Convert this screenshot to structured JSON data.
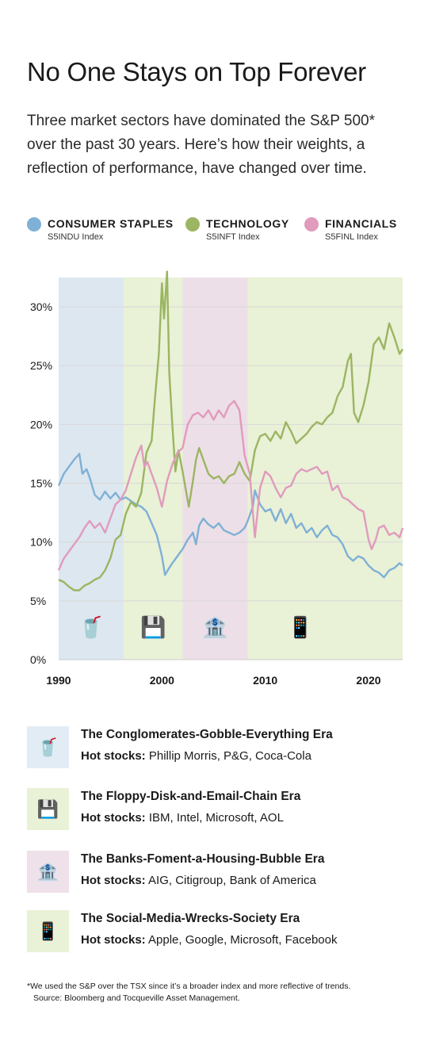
{
  "header": {
    "title": "No One Stays on Top Forever",
    "subtitle": "Three market sectors have dominated the S&P 500* over the past 30 years. Here’s how their weights, a reflection of performance, have changed over time."
  },
  "legend": [
    {
      "name": "CONSUMER STAPLES",
      "index": "S5INDU Index",
      "color": "#7fb0d6"
    },
    {
      "name": "TECHNOLOGY",
      "index": "S5INFT Index",
      "color": "#9bb562"
    },
    {
      "name": "FINANCIALS",
      "index": "S5FINL Index",
      "color": "#e09bbd"
    }
  ],
  "chart_data": {
    "type": "line",
    "title": "",
    "xlabel": "",
    "ylabel": "",
    "xlim": [
      1990,
      2023.3
    ],
    "ylim": [
      0,
      30
    ],
    "x_ticks": [
      {
        "value": 1990,
        "label": "1990"
      },
      {
        "value": 2000,
        "label": "2000"
      },
      {
        "value": 2010,
        "label": "2010"
      },
      {
        "value": 2020,
        "label": "2020"
      }
    ],
    "y_ticks": [
      {
        "value": 0,
        "label": "0%"
      },
      {
        "value": 5,
        "label": "5%"
      },
      {
        "value": 10,
        "label": "10%"
      },
      {
        "value": 15,
        "label": "15%"
      },
      {
        "value": 20,
        "label": "20%"
      },
      {
        "value": 25,
        "label": "25%"
      },
      {
        "value": 30,
        "label": "30%"
      }
    ],
    "grid": true,
    "legend_position": "top",
    "era_bands": [
      {
        "start": 1990,
        "end": 1996.3,
        "sector": "CONSUMER STAPLES",
        "icon": "soda-cup-icon",
        "glyph": "🥤"
      },
      {
        "start": 1996.3,
        "end": 2002,
        "sector": "TECHNOLOGY",
        "icon": "floppy-disk-icon",
        "glyph": "💾"
      },
      {
        "start": 2002,
        "end": 2008.3,
        "sector": "FINANCIALS",
        "icon": "bank-icon",
        "glyph": "🏦"
      },
      {
        "start": 2008.3,
        "end": 2023.3,
        "sector": "TECHNOLOGY",
        "icon": "mobile-phone-icon",
        "glyph": "📱"
      }
    ],
    "series": [
      {
        "name": "CONSUMER STAPLES",
        "color": "#7fb0d6",
        "points": [
          [
            1990,
            14.8
          ],
          [
            1990.5,
            15.8
          ],
          [
            1991,
            16.4
          ],
          [
            1991.5,
            17.0
          ],
          [
            1992,
            17.5
          ],
          [
            1992.3,
            15.8
          ],
          [
            1992.7,
            16.2
          ],
          [
            1993,
            15.5
          ],
          [
            1993.5,
            14.0
          ],
          [
            1994,
            13.6
          ],
          [
            1994.5,
            14.3
          ],
          [
            1995,
            13.7
          ],
          [
            1995.5,
            14.2
          ],
          [
            1996,
            13.6
          ],
          [
            1996.5,
            13.8
          ],
          [
            1997,
            13.5
          ],
          [
            1997.5,
            13.2
          ],
          [
            1998,
            13.0
          ],
          [
            1998.5,
            12.6
          ],
          [
            1999,
            11.6
          ],
          [
            1999.5,
            10.6
          ],
          [
            2000,
            8.8
          ],
          [
            2000.3,
            7.2
          ],
          [
            2000.7,
            7.8
          ],
          [
            2001,
            8.2
          ],
          [
            2001.5,
            8.8
          ],
          [
            2002,
            9.4
          ],
          [
            2002.5,
            10.2
          ],
          [
            2003,
            10.8
          ],
          [
            2003.3,
            9.8
          ],
          [
            2003.6,
            11.4
          ],
          [
            2004,
            12.0
          ],
          [
            2004.5,
            11.5
          ],
          [
            2005,
            11.2
          ],
          [
            2005.5,
            11.6
          ],
          [
            2006,
            11.0
          ],
          [
            2006.5,
            10.8
          ],
          [
            2007,
            10.6
          ],
          [
            2007.5,
            10.8
          ],
          [
            2008,
            11.2
          ],
          [
            2008.3,
            11.8
          ],
          [
            2008.8,
            13.0
          ],
          [
            2009,
            14.4
          ],
          [
            2009.5,
            13.2
          ],
          [
            2010,
            12.6
          ],
          [
            2010.5,
            12.8
          ],
          [
            2011,
            11.8
          ],
          [
            2011.5,
            12.8
          ],
          [
            2012,
            11.6
          ],
          [
            2012.5,
            12.4
          ],
          [
            2013,
            11.2
          ],
          [
            2013.5,
            11.6
          ],
          [
            2014,
            10.8
          ],
          [
            2014.5,
            11.2
          ],
          [
            2015,
            10.4
          ],
          [
            2015.5,
            11.0
          ],
          [
            2016,
            11.4
          ],
          [
            2016.5,
            10.6
          ],
          [
            2017,
            10.4
          ],
          [
            2017.5,
            9.8
          ],
          [
            2018,
            8.8
          ],
          [
            2018.5,
            8.4
          ],
          [
            2019,
            8.8
          ],
          [
            2019.5,
            8.6
          ],
          [
            2020,
            8.0
          ],
          [
            2020.5,
            7.6
          ],
          [
            2021,
            7.4
          ],
          [
            2021.5,
            7.0
          ],
          [
            2022,
            7.6
          ],
          [
            2022.5,
            7.8
          ],
          [
            2023,
            8.2
          ],
          [
            2023.3,
            8.0
          ]
        ]
      },
      {
        "name": "TECHNOLOGY",
        "color": "#9bb562",
        "points": [
          [
            1990,
            6.8
          ],
          [
            1990.5,
            6.6
          ],
          [
            1991,
            6.2
          ],
          [
            1991.5,
            5.9
          ],
          [
            1992,
            5.9
          ],
          [
            1992.5,
            6.3
          ],
          [
            1993,
            6.5
          ],
          [
            1993.5,
            6.8
          ],
          [
            1994,
            7.0
          ],
          [
            1994.5,
            7.6
          ],
          [
            1995,
            8.6
          ],
          [
            1995.5,
            10.2
          ],
          [
            1996,
            10.6
          ],
          [
            1996.5,
            12.4
          ],
          [
            1997,
            13.4
          ],
          [
            1997.5,
            13.0
          ],
          [
            1998,
            14.2
          ],
          [
            1998.5,
            17.6
          ],
          [
            1999,
            18.6
          ],
          [
            1999.3,
            22.0
          ],
          [
            1999.7,
            26.0
          ],
          [
            2000,
            32.0
          ],
          [
            2000.2,
            29.0
          ],
          [
            2000.5,
            33.0
          ],
          [
            2000.7,
            24.5
          ],
          [
            2001,
            20.0
          ],
          [
            2001.3,
            16.0
          ],
          [
            2001.6,
            17.8
          ],
          [
            2002,
            16.0
          ],
          [
            2002.3,
            14.5
          ],
          [
            2002.6,
            13.0
          ],
          [
            2003,
            15.2
          ],
          [
            2003.3,
            17.0
          ],
          [
            2003.6,
            18.0
          ],
          [
            2004,
            17.0
          ],
          [
            2004.5,
            15.8
          ],
          [
            2005,
            15.4
          ],
          [
            2005.5,
            15.6
          ],
          [
            2006,
            15.0
          ],
          [
            2006.5,
            15.6
          ],
          [
            2007,
            15.8
          ],
          [
            2007.5,
            16.8
          ],
          [
            2008,
            15.8
          ],
          [
            2008.5,
            15.2
          ],
          [
            2009,
            17.8
          ],
          [
            2009.5,
            19.0
          ],
          [
            2010,
            19.2
          ],
          [
            2010.5,
            18.6
          ],
          [
            2011,
            19.4
          ],
          [
            2011.5,
            18.8
          ],
          [
            2012,
            20.2
          ],
          [
            2012.5,
            19.4
          ],
          [
            2013,
            18.4
          ],
          [
            2013.5,
            18.8
          ],
          [
            2014,
            19.2
          ],
          [
            2014.5,
            19.8
          ],
          [
            2015,
            20.2
          ],
          [
            2015.5,
            20.0
          ],
          [
            2016,
            20.6
          ],
          [
            2016.5,
            21.0
          ],
          [
            2017,
            22.4
          ],
          [
            2017.5,
            23.2
          ],
          [
            2018,
            25.4
          ],
          [
            2018.3,
            26.0
          ],
          [
            2018.6,
            21.0
          ],
          [
            2019,
            20.2
          ],
          [
            2019.5,
            21.6
          ],
          [
            2020,
            23.6
          ],
          [
            2020.5,
            26.8
          ],
          [
            2021,
            27.4
          ],
          [
            2021.5,
            26.4
          ],
          [
            2022,
            28.6
          ],
          [
            2022.5,
            27.4
          ],
          [
            2023,
            26.0
          ],
          [
            2023.3,
            26.4
          ]
        ]
      },
      {
        "name": "FINANCIALS",
        "color": "#e09bbd",
        "points": [
          [
            1990,
            7.6
          ],
          [
            1990.5,
            8.6
          ],
          [
            1991,
            9.2
          ],
          [
            1991.5,
            9.8
          ],
          [
            1992,
            10.4
          ],
          [
            1992.5,
            11.2
          ],
          [
            1993,
            11.8
          ],
          [
            1993.5,
            11.2
          ],
          [
            1994,
            11.6
          ],
          [
            1994.5,
            10.8
          ],
          [
            1995,
            12.0
          ],
          [
            1995.5,
            13.2
          ],
          [
            1996,
            13.6
          ],
          [
            1996.5,
            14.4
          ],
          [
            1997,
            15.8
          ],
          [
            1997.5,
            17.2
          ],
          [
            1998,
            18.2
          ],
          [
            1998.3,
            16.4
          ],
          [
            1998.6,
            16.8
          ],
          [
            1999,
            15.8
          ],
          [
            1999.5,
            14.6
          ],
          [
            2000,
            13.0
          ],
          [
            2000.5,
            15.2
          ],
          [
            2001,
            16.6
          ],
          [
            2001.5,
            17.6
          ],
          [
            2002,
            18.0
          ],
          [
            2002.5,
            20.0
          ],
          [
            2003,
            20.8
          ],
          [
            2003.5,
            21.0
          ],
          [
            2004,
            20.6
          ],
          [
            2004.5,
            21.2
          ],
          [
            2005,
            20.4
          ],
          [
            2005.5,
            21.2
          ],
          [
            2006,
            20.6
          ],
          [
            2006.5,
            21.6
          ],
          [
            2007,
            22.0
          ],
          [
            2007.5,
            21.2
          ],
          [
            2008,
            17.4
          ],
          [
            2008.5,
            15.8
          ],
          [
            2009,
            10.4
          ],
          [
            2009.5,
            14.6
          ],
          [
            2010,
            16.0
          ],
          [
            2010.5,
            15.6
          ],
          [
            2011,
            14.6
          ],
          [
            2011.5,
            13.8
          ],
          [
            2012,
            14.6
          ],
          [
            2012.5,
            14.8
          ],
          [
            2013,
            15.8
          ],
          [
            2013.5,
            16.2
          ],
          [
            2014,
            16.0
          ],
          [
            2014.5,
            16.2
          ],
          [
            2015,
            16.4
          ],
          [
            2015.5,
            15.8
          ],
          [
            2016,
            16.0
          ],
          [
            2016.5,
            14.4
          ],
          [
            2017,
            14.8
          ],
          [
            2017.5,
            13.8
          ],
          [
            2018,
            13.6
          ],
          [
            2018.5,
            13.2
          ],
          [
            2019,
            12.8
          ],
          [
            2019.5,
            12.6
          ],
          [
            2020,
            10.2
          ],
          [
            2020.3,
            9.4
          ],
          [
            2020.7,
            10.2
          ],
          [
            2021,
            11.2
          ],
          [
            2021.5,
            11.4
          ],
          [
            2022,
            10.6
          ],
          [
            2022.5,
            10.8
          ],
          [
            2023,
            10.4
          ],
          [
            2023.3,
            11.2
          ]
        ]
      }
    ]
  },
  "eras": [
    {
      "title": "The Conglomerates-Gobble-Everything Era",
      "stocks_label": "Hot stocks:",
      "stocks": "Phillip Morris, P&G, Coca-Cola",
      "icon": "soda-cup-icon",
      "glyph": "🥤",
      "bg": "#e2ecf4"
    },
    {
      "title": "The Floppy-Disk-and-Email-Chain Era",
      "stocks_label": "Hot stocks:",
      "stocks": "IBM, Intel, Microsoft, AOL",
      "icon": "floppy-disk-icon",
      "glyph": "💾",
      "bg": "#e9f1d6"
    },
    {
      "title": "The Banks-Foment-a-Housing-Bubble Era",
      "stocks_label": "Hot stocks:",
      "stocks": "AIG, Citigroup, Bank of America",
      "icon": "bank-icon",
      "glyph": "🏦",
      "bg": "#efe1ea"
    },
    {
      "title": "The Social-Media-Wrecks-Society Era",
      "stocks_label": "Hot stocks:",
      "stocks": "Apple, Google, Microsoft, Facebook",
      "icon": "mobile-phone-icon",
      "glyph": "📱",
      "bg": "#e9f1d6"
    }
  ],
  "footnote": {
    "note": "*We used the S&P over the TSX since it’s a broader index and more reflective of trends.",
    "source": "Source: Bloomberg and Tocqueville Asset Management."
  }
}
